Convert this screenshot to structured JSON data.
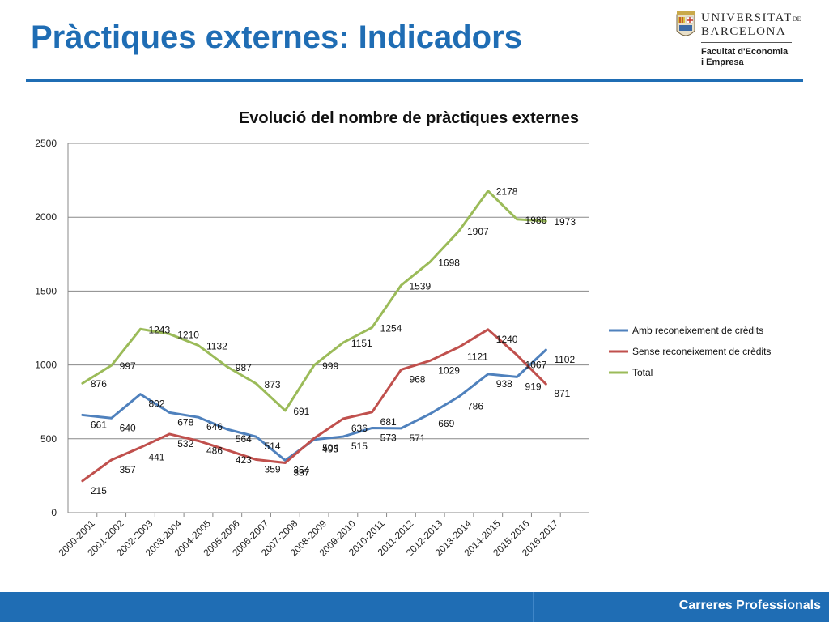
{
  "slide": {
    "title": "Pràctiques externes: Indicadors",
    "footer": "Carreres Professionals"
  },
  "logo": {
    "university_line1": "UNIVERSITAT",
    "university_line1_suffix": "DE",
    "university_line2": "BARCELONA",
    "faculty_line1": "Facultat d'Economia",
    "faculty_line2": "i Empresa"
  },
  "colors": {
    "accent": "#1F6DB4",
    "series_amb": "#4F81BD",
    "series_sense": "#C0504D",
    "series_total": "#9BBB59"
  },
  "chart_data": {
    "type": "line",
    "title": "Evolució del nombre de pràctiques externes",
    "xlabel": "",
    "ylabel": "",
    "ylim": [
      0,
      2500
    ],
    "yticks": [
      0,
      500,
      1000,
      1500,
      2000,
      2500
    ],
    "grid": true,
    "legend_position": "right",
    "categories": [
      "2000-2001",
      "2001-2002",
      "2002-2003",
      "2003-2004",
      "2004-2005",
      "2005-2006",
      "2006-2007",
      "2007-2008",
      "2008-2009",
      "2009-2010",
      "2010-2011",
      "2011-2012",
      "2012-2013",
      "2013-2014",
      "2014-2015",
      "2015-2016",
      "2016-2017"
    ],
    "series": [
      {
        "name": "Amb reconeixement de crèdits",
        "color": "#4F81BD",
        "values": [
          661,
          640,
          802,
          678,
          646,
          564,
          514,
          354,
          495,
          515,
          573,
          571,
          669,
          786,
          938,
          919,
          1102
        ]
      },
      {
        "name": "Sense reconeixement de crèdits",
        "color": "#C0504D",
        "values": [
          215,
          357,
          441,
          532,
          486,
          423,
          359,
          337,
          504,
          636,
          681,
          968,
          1029,
          1121,
          1240,
          1067,
          871
        ]
      },
      {
        "name": "Total",
        "color": "#9BBB59",
        "values": [
          876,
          997,
          1243,
          1210,
          1132,
          987,
          873,
          691,
          999,
          1151,
          1254,
          1539,
          1698,
          1907,
          2178,
          1986,
          1973
        ]
      }
    ]
  }
}
